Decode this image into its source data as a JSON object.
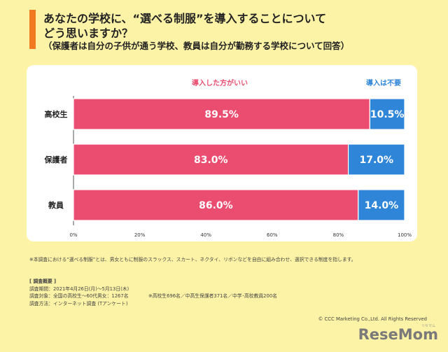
{
  "header": {
    "line1": "あなたの学校に、“選べる制服”を導入することについて",
    "line2": "どう思いますか？",
    "line3": "（保護者は自分の子供が通う学校、教員は自分が勤務する学校について回答）"
  },
  "colors": {
    "background": "#fdf3a6",
    "accent": "#f07a1d",
    "yes": "#ea4d6f",
    "no": "#2f86d9"
  },
  "chart_data": {
    "type": "bar",
    "orientation": "horizontal",
    "stacked": true,
    "categories": [
      "高校生",
      "保護者",
      "教員"
    ],
    "series": [
      {
        "name": "導入した方がいい",
        "values": [
          89.5,
          83.0,
          86.0
        ],
        "labels": [
          "89.5%",
          "83.0%",
          "86.0%"
        ]
      },
      {
        "name": "導入は不要",
        "values": [
          10.5,
          17.0,
          14.0
        ],
        "labels": [
          "10.5%",
          "17.0%",
          "14.0%"
        ]
      }
    ],
    "xlim": [
      0,
      100
    ],
    "xticks": [
      "0%",
      "20%",
      "40%",
      "60%",
      "80%",
      "100%"
    ],
    "legend": "top"
  },
  "footnote": "※本調査における“選べる制服”とは、男女ともに制服のスラックス、スカート、ネクタイ、リボンなどを自由に組み合わせ、選択できる制度を指します。",
  "survey": {
    "heading": "[ 調査概要 ]",
    "period": "調査期間：2021年4月26日(月)〜5月13日(木)",
    "target": "調査対象：全国の高校生〜60代男女：1267名",
    "target_detail": "※高校生696名／中高生保護者371名／中学･高校教員200名",
    "method": "調査方法：インターネット調査 (Tアンケート)"
  },
  "copyright": "© CCC Marketing Co.,Ltd. All Rights Reserved",
  "logo": "ReseMom",
  "logo_sub": "リセマム"
}
